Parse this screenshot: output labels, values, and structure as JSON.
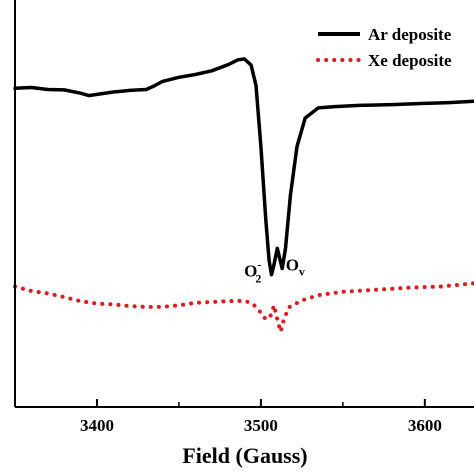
{
  "chart_data": {
    "type": "line",
    "xlabel": "Field (Gauss)",
    "ylabel": "",
    "xlim": [
      3350,
      3630
    ],
    "ylim": [
      0,
      1
    ],
    "x_ticks": [
      3400,
      3500,
      3600
    ],
    "legend_position": "top-right",
    "grid": false,
    "series": [
      {
        "name": "Ar deposite",
        "style": "solid",
        "color": "#000000",
        "points": [
          [
            3350,
            0.783
          ],
          [
            3360,
            0.785
          ],
          [
            3370,
            0.78
          ],
          [
            3380,
            0.779
          ],
          [
            3390,
            0.771
          ],
          [
            3395,
            0.765
          ],
          [
            3400,
            0.768
          ],
          [
            3410,
            0.774
          ],
          [
            3420,
            0.778
          ],
          [
            3430,
            0.78
          ],
          [
            3435,
            0.789
          ],
          [
            3440,
            0.8
          ],
          [
            3450,
            0.81
          ],
          [
            3460,
            0.817
          ],
          [
            3470,
            0.826
          ],
          [
            3480,
            0.841
          ],
          [
            3486,
            0.853
          ],
          [
            3490,
            0.855
          ],
          [
            3494,
            0.84
          ],
          [
            3497,
            0.79
          ],
          [
            3500,
            0.64
          ],
          [
            3503,
            0.46
          ],
          [
            3505,
            0.36
          ],
          [
            3506.5,
            0.325
          ],
          [
            3508,
            0.35
          ],
          [
            3510,
            0.39
          ],
          [
            3511.5,
            0.365
          ],
          [
            3513,
            0.34
          ],
          [
            3515,
            0.39
          ],
          [
            3518,
            0.52
          ],
          [
            3522,
            0.64
          ],
          [
            3527,
            0.71
          ],
          [
            3535,
            0.735
          ],
          [
            3545,
            0.738
          ],
          [
            3560,
            0.741
          ],
          [
            3580,
            0.743
          ],
          [
            3600,
            0.746
          ],
          [
            3615,
            0.748
          ],
          [
            3630,
            0.751
          ]
        ]
      },
      {
        "name": "Xe deposite",
        "style": "dotted",
        "color": "#dd1c1c",
        "points": [
          [
            3350,
            0.296
          ],
          [
            3360,
            0.285
          ],
          [
            3370,
            0.279
          ],
          [
            3380,
            0.27
          ],
          [
            3390,
            0.26
          ],
          [
            3400,
            0.254
          ],
          [
            3410,
            0.252
          ],
          [
            3420,
            0.248
          ],
          [
            3430,
            0.246
          ],
          [
            3440,
            0.246
          ],
          [
            3450,
            0.25
          ],
          [
            3460,
            0.256
          ],
          [
            3470,
            0.258
          ],
          [
            3480,
            0.26
          ],
          [
            3490,
            0.261
          ],
          [
            3495,
            0.254
          ],
          [
            3500,
            0.232
          ],
          [
            3503,
            0.215
          ],
          [
            3506,
            0.225
          ],
          [
            3508,
            0.25
          ],
          [
            3510,
            0.215
          ],
          [
            3512,
            0.185
          ],
          [
            3514,
            0.215
          ],
          [
            3517,
            0.245
          ],
          [
            3525,
            0.262
          ],
          [
            3535,
            0.275
          ],
          [
            3550,
            0.283
          ],
          [
            3570,
            0.288
          ],
          [
            3590,
            0.293
          ],
          [
            3610,
            0.296
          ],
          [
            3630,
            0.304
          ]
        ]
      }
    ],
    "annotations": [
      {
        "label": "O",
        "sup": "-",
        "sub": "2",
        "x": 3495,
        "y": 0.335
      },
      {
        "label": "O",
        "sup": "",
        "sub": "v",
        "x": 3521,
        "y": 0.35
      }
    ]
  }
}
